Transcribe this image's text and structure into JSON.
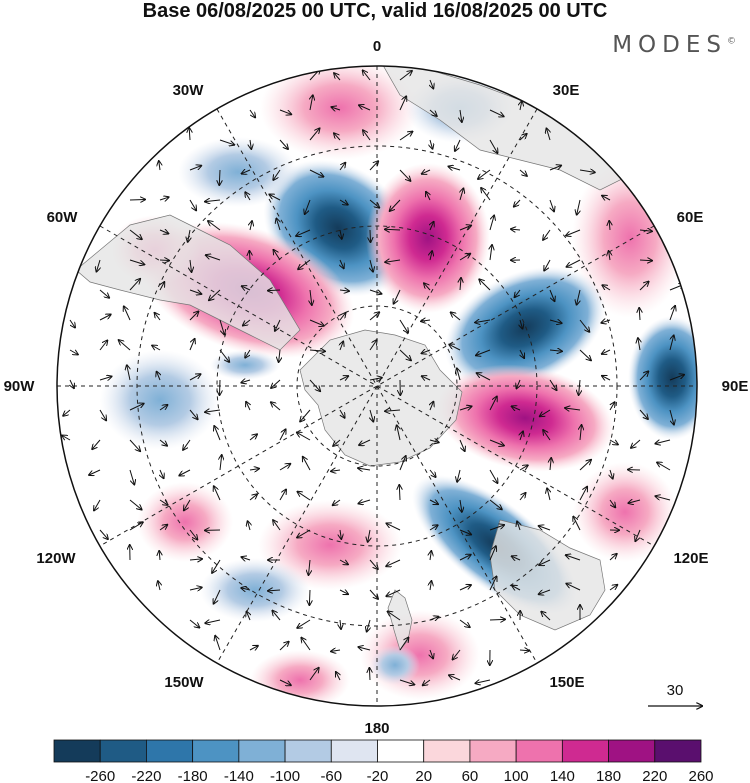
{
  "title": "Base 06/08/2025 00 UTC, valid 16/08/2025 00 UTC",
  "brand": {
    "name": "MODES",
    "mark": "©"
  },
  "map": {
    "projection": "south-polar-stereographic",
    "longitude_labels": [
      {
        "id": "0",
        "text": "0"
      },
      {
        "id": "30e",
        "text": "30E"
      },
      {
        "id": "60e",
        "text": "60E"
      },
      {
        "id": "90e",
        "text": "90E"
      },
      {
        "id": "120e",
        "text": "120E"
      },
      {
        "id": "150e",
        "text": "150E"
      },
      {
        "id": "180",
        "text": "180"
      },
      {
        "id": "150w",
        "text": "150W"
      },
      {
        "id": "120w",
        "text": "120W"
      },
      {
        "id": "90w",
        "text": "90W"
      },
      {
        "id": "60w",
        "text": "60W"
      },
      {
        "id": "30w",
        "text": "30W"
      }
    ],
    "reference_vector": {
      "value": "30"
    }
  },
  "colorbar": {
    "tick_labels": [
      "-260",
      "-220",
      "-180",
      "-140",
      "-100",
      "-60",
      "-20",
      "20",
      "60",
      "100",
      "140",
      "180",
      "220",
      "260"
    ],
    "colors": [
      "#143b5a",
      "#1f5b85",
      "#2e76aa",
      "#4d93c3",
      "#7fb0d6",
      "#b3cbe4",
      "#dfe5f1",
      "#ffffff",
      "#fbd7dc",
      "#f6aac3",
      "#ee72ad",
      "#cf2a91",
      "#9f1283",
      "#5a0f6e"
    ]
  },
  "colors": {
    "land": "#e5e5e5",
    "grid": "#222222",
    "frame": "#111111"
  }
}
